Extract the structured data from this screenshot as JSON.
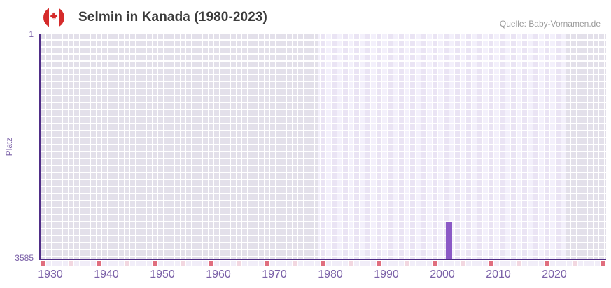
{
  "header": {
    "flag_icon": "canada-flag-icon",
    "title": "Selmin in Kanada (1980-2023)",
    "source": "Quelle: Baby-Vornamen.de"
  },
  "chart_data": {
    "type": "bar",
    "title": "Selmin in Kanada (1980-2023)",
    "source": "Quelle: Baby-Vornamen.de",
    "ylabel": "Platz",
    "y_axis": {
      "top_tick": "1",
      "bottom_tick": "3585",
      "min": 1,
      "max": 3585,
      "inverted": true
    },
    "x_axis": {
      "ticks": [
        "1930",
        "1940",
        "1950",
        "1960",
        "1970",
        "1980",
        "1990",
        "2000",
        "2010",
        "2020"
      ],
      "range_start": 1929,
      "range_end": 2029
    },
    "series": [
      {
        "name": "Selmin",
        "points": [
          {
            "year": 2001,
            "rank": 3000
          }
        ]
      }
    ],
    "data_period": {
      "start": 1980,
      "end": 2023
    },
    "grid": true,
    "legend": false,
    "colors": {
      "bar": "#8B59C6",
      "axis": "#4F2D87",
      "tick_text": "#7B61A8",
      "title_text": "#3B3B3B",
      "source_text": "#9B9B9B",
      "cell_light_a": "#EAE4F4",
      "cell_light_b": "#F3F0FB",
      "cell_gray": "#E3E0EA",
      "marker_red": "#E06E7E",
      "marker_pink": "#F2D7E0",
      "flag_red": "#D52B2B"
    }
  }
}
